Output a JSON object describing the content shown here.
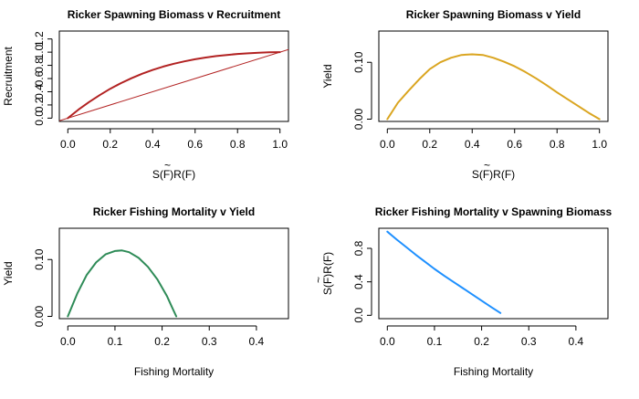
{
  "chart_data": [
    {
      "type": "line",
      "title": "Ricker Spawning Biomass v Recruitment",
      "xlabel": "S(F)R(F)",
      "xlabel_tilde": "~",
      "ylabel": "Recruitment",
      "xlim": [
        -0.04,
        1.04
      ],
      "ylim": [
        -0.05,
        1.32
      ],
      "x_ticks": [
        0.0,
        0.2,
        0.4,
        0.6,
        0.8,
        1.0
      ],
      "x_tick_labels": [
        "0.0",
        "0.2",
        "0.4",
        "0.6",
        "0.8",
        "1.0"
      ],
      "y_ticks": [
        0.0,
        0.2,
        0.4,
        0.6,
        0.8,
        1.0,
        1.2
      ],
      "y_tick_labels": [
        "0.0",
        "0.2",
        "0.4",
        "0.6",
        "0.8",
        "1.0",
        "1.2"
      ],
      "series": [
        {
          "color": "#B22222",
          "width": 2,
          "x": [
            0.0,
            0.05,
            0.1,
            0.15,
            0.2,
            0.25,
            0.3,
            0.35,
            0.4,
            0.45,
            0.5,
            0.55,
            0.6,
            0.65,
            0.7,
            0.75,
            0.8,
            0.85,
            0.9,
            0.95,
            1.0
          ],
          "y": [
            0.0,
            0.128,
            0.244,
            0.349,
            0.445,
            0.53,
            0.605,
            0.672,
            0.73,
            0.781,
            0.824,
            0.861,
            0.893,
            0.919,
            0.941,
            0.958,
            0.972,
            0.983,
            0.991,
            0.997,
            1.0
          ]
        },
        {
          "color": "#B22222",
          "width": 1,
          "x": [
            -0.04,
            1.04
          ],
          "y": [
            -0.04,
            1.04
          ]
        }
      ]
    },
    {
      "type": "line",
      "title": "Ricker Spawning Biomass v Yield",
      "xlabel": "S(F)R(F)",
      "xlabel_tilde": "~",
      "ylabel": "Yield",
      "xlim": [
        -0.04,
        1.04
      ],
      "ylim": [
        -0.004,
        0.155
      ],
      "x_ticks": [
        0.0,
        0.2,
        0.4,
        0.6,
        0.8,
        1.0
      ],
      "x_tick_labels": [
        "0.0",
        "0.2",
        "0.4",
        "0.6",
        "0.8",
        "1.0"
      ],
      "y_ticks": [
        0.0,
        0.1
      ],
      "y_tick_labels": [
        "0.00",
        "0.10"
      ],
      "series": [
        {
          "color": "#DAA520",
          "width": 2,
          "x": [
            0.0,
            0.05,
            0.1,
            0.15,
            0.2,
            0.25,
            0.3,
            0.35,
            0.4,
            0.45,
            0.5,
            0.55,
            0.6,
            0.65,
            0.7,
            0.75,
            0.8,
            0.85,
            0.9,
            0.95,
            1.0
          ],
          "y": [
            0.0,
            0.029,
            0.05,
            0.07,
            0.088,
            0.1,
            0.108,
            0.113,
            0.114,
            0.113,
            0.108,
            0.101,
            0.093,
            0.083,
            0.072,
            0.06,
            0.047,
            0.035,
            0.023,
            0.011,
            0.0
          ]
        }
      ]
    },
    {
      "type": "line",
      "title": "Ricker Fishing Mortality v Yield",
      "xlabel": "Fishing Mortality",
      "ylabel": "Yield",
      "xlim": [
        -0.018,
        0.468
      ],
      "ylim": [
        -0.004,
        0.155
      ],
      "x_ticks": [
        0.0,
        0.1,
        0.2,
        0.3,
        0.4
      ],
      "x_tick_labels": [
        "0.0",
        "0.1",
        "0.2",
        "0.3",
        "0.4"
      ],
      "y_ticks": [
        0.0,
        0.1
      ],
      "y_tick_labels": [
        "0.00",
        "0.10"
      ],
      "series": [
        {
          "color": "#2E8B57",
          "width": 2,
          "x": [
            0.0,
            0.02,
            0.04,
            0.06,
            0.08,
            0.1,
            0.115,
            0.13,
            0.15,
            0.17,
            0.19,
            0.21,
            0.22,
            0.23
          ],
          "y": [
            0.0,
            0.04,
            0.073,
            0.095,
            0.109,
            0.115,
            0.116,
            0.113,
            0.103,
            0.087,
            0.065,
            0.036,
            0.018,
            0.0
          ]
        }
      ]
    },
    {
      "type": "line",
      "title": "Ricker Fishing Mortality v Spawning Biomass",
      "xlabel": "Fishing Mortality",
      "ylabel": "S(F)R(F)",
      "ylabel_tilde": "~",
      "xlim": [
        -0.018,
        0.468
      ],
      "ylim": [
        -0.04,
        1.04
      ],
      "x_ticks": [
        0.0,
        0.1,
        0.2,
        0.3,
        0.4
      ],
      "x_tick_labels": [
        "0.0",
        "0.1",
        "0.2",
        "0.3",
        "0.4"
      ],
      "y_ticks": [
        0.0,
        0.4,
        0.8
      ],
      "y_tick_labels": [
        "0.0",
        "0.4",
        "0.8"
      ],
      "series": [
        {
          "color": "#1E90FF",
          "width": 2,
          "x": [
            0.0,
            0.02,
            0.04,
            0.06,
            0.08,
            0.1,
            0.12,
            0.14,
            0.16,
            0.18,
            0.2,
            0.22,
            0.24
          ],
          "y": [
            1.0,
            0.905,
            0.815,
            0.725,
            0.64,
            0.555,
            0.475,
            0.4,
            0.325,
            0.25,
            0.175,
            0.1,
            0.028
          ]
        }
      ]
    }
  ]
}
